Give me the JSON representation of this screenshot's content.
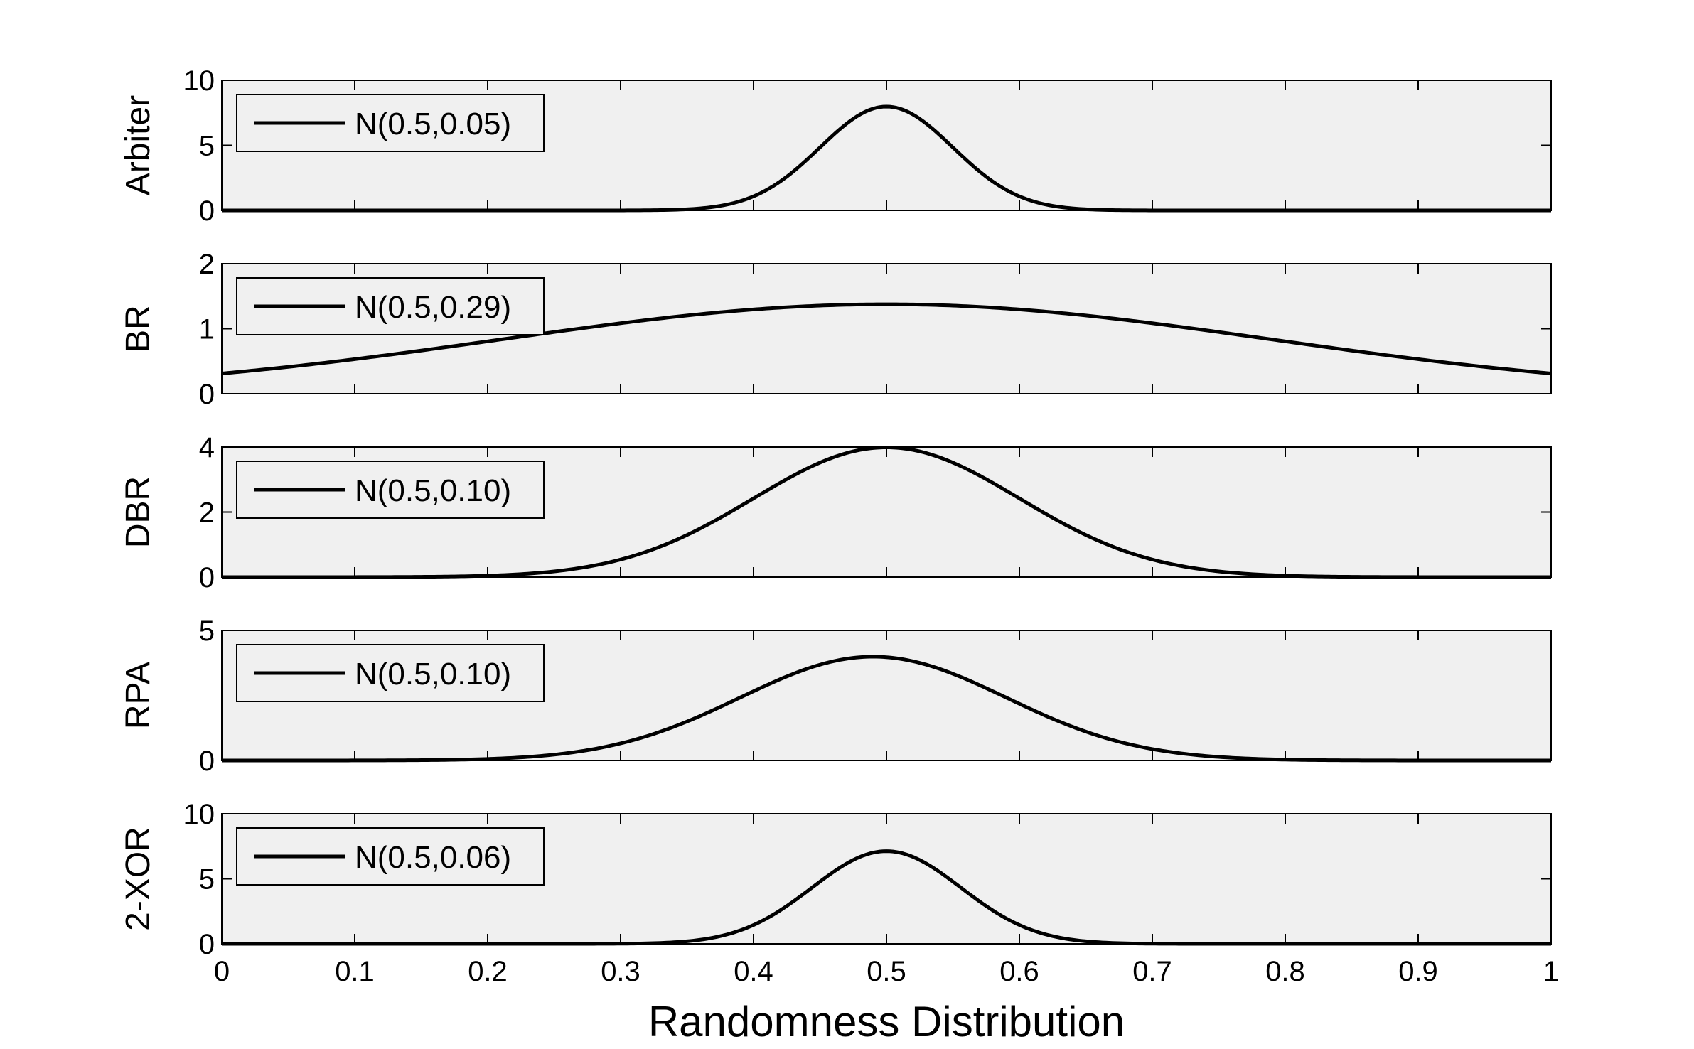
{
  "chart_data": {
    "type": "line",
    "xlabel": "Randomness Distribution",
    "xlim": [
      0,
      1
    ],
    "xticks": [
      "0",
      "0.1",
      "0.2",
      "0.3",
      "0.4",
      "0.5",
      "0.6",
      "0.7",
      "0.8",
      "0.9",
      "1"
    ],
    "grid": false,
    "legend_position": "top-left",
    "colors": {
      "line": "#000000",
      "axes_bg": "#f0f0f0",
      "frame": "#000000"
    },
    "panels": [
      {
        "ylabel": "Arbiter",
        "ylim": [
          0,
          10
        ],
        "yticks": [
          "0",
          "5",
          "10"
        ],
        "series": [
          {
            "name": "N(0.5,0.05)",
            "mean": 0.5,
            "sd": 0.05
          }
        ]
      },
      {
        "ylabel": "BR",
        "ylim": [
          0,
          2
        ],
        "yticks": [
          "0",
          "1",
          "2"
        ],
        "series": [
          {
            "name": "N(0.5,0.29)",
            "mean": 0.5,
            "sd": 0.29
          }
        ]
      },
      {
        "ylabel": "DBR",
        "ylim": [
          0,
          4
        ],
        "yticks": [
          "0",
          "2",
          "4"
        ],
        "series": [
          {
            "name": "N(0.5,0.10)",
            "mean": 0.5,
            "sd": 0.1
          }
        ]
      },
      {
        "ylabel": "RPA",
        "ylim": [
          0,
          5
        ],
        "yticks": [
          "0",
          "5"
        ],
        "series": [
          {
            "name": "N(0.5,0.10)",
            "mean": 0.49,
            "sd": 0.1
          }
        ]
      },
      {
        "ylabel": "2-XOR",
        "ylim": [
          0,
          10
        ],
        "yticks": [
          "0",
          "5",
          "10"
        ],
        "series": [
          {
            "name": "N(0.5,0.06)",
            "mean": 0.5,
            "sd": 0.056
          }
        ]
      }
    ]
  }
}
